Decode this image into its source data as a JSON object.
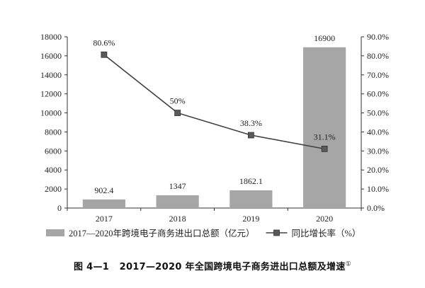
{
  "caption": {
    "label": "图 4—1",
    "text": "2017—2020 年全国跨境电子商务进出口总额及增速",
    "footnote_mark": "①"
  },
  "chart_data": {
    "type": "bar",
    "categories": [
      "2017",
      "2018",
      "2019",
      "2020"
    ],
    "series": [
      {
        "name": "2017—2020年跨境电子商务进出口总额（亿元）",
        "type": "bar",
        "axis": "left",
        "values": [
          902.4,
          1347,
          1862.1,
          16900
        ],
        "data_labels": [
          "902.4",
          "1347",
          "1862.1",
          "16900"
        ],
        "color": "#a6a6a6"
      },
      {
        "name": "同比增长率（%）",
        "type": "line",
        "axis": "right",
        "values": [
          80.6,
          50,
          38.3,
          31.1
        ],
        "data_labels": [
          "80.6%",
          "50%",
          "38.3%",
          "31.1%"
        ],
        "color": "#404040",
        "marker": "square"
      }
    ],
    "ylim_left": [
      0,
      18000
    ],
    "yticks_left": [
      "0",
      "2000",
      "4000",
      "6000",
      "8000",
      "10000",
      "12000",
      "14000",
      "16000",
      "18000"
    ],
    "ylim_right": [
      0,
      90
    ],
    "yticks_right": [
      "0.0%",
      "10.0%",
      "20.0%",
      "30.0%",
      "40.0%",
      "50.0%",
      "60.0%",
      "70.0%",
      "80.0%",
      "90.0%"
    ],
    "grid": false,
    "legend_position": "bottom"
  }
}
